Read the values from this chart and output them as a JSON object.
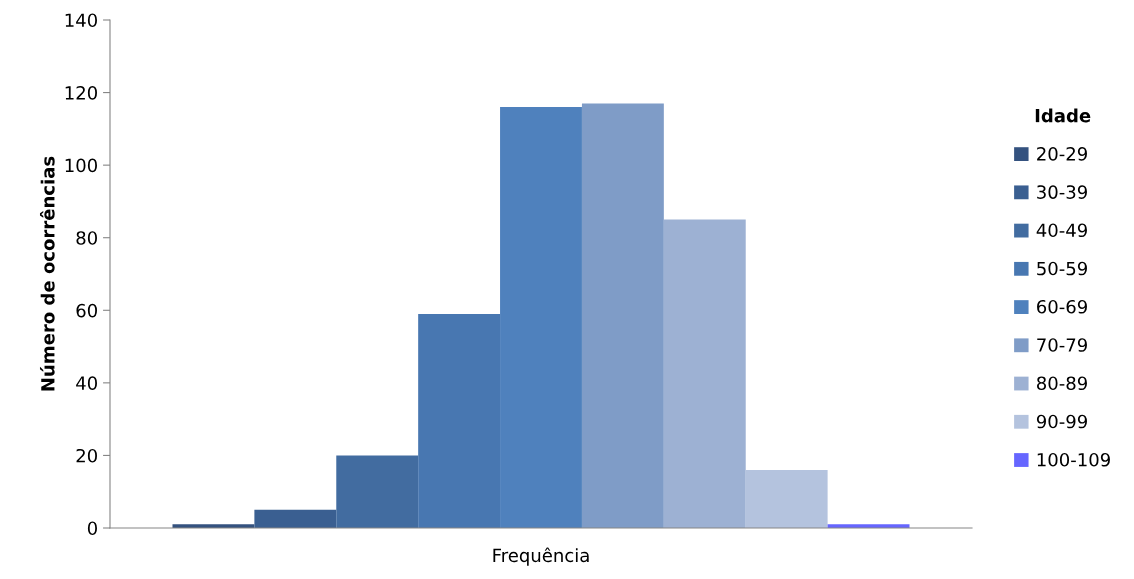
{
  "chart_data": {
    "type": "bar",
    "ylabel": "Número de ocorrências",
    "legend_title": "Idade",
    "categories": [
      "Frequência"
    ],
    "series": [
      {
        "name": "20-29",
        "color": "#34527f",
        "values": [
          1
        ]
      },
      {
        "name": "30-39",
        "color": "#3a5f91",
        "values": [
          5
        ]
      },
      {
        "name": "40-49",
        "color": "#426ca0",
        "values": [
          20
        ]
      },
      {
        "name": "50-59",
        "color": "#4877b1",
        "values": [
          59
        ]
      },
      {
        "name": "60-69",
        "color": "#4f81bd",
        "values": [
          116
        ]
      },
      {
        "name": "70-79",
        "color": "#7f9cc7",
        "values": [
          117
        ]
      },
      {
        "name": "80-89",
        "color": "#9db1d3",
        "values": [
          85
        ]
      },
      {
        "name": "90-99",
        "color": "#b4c3de",
        "values": [
          16
        ]
      },
      {
        "name": "100-109",
        "color": "#6666ff",
        "values": [
          1
        ]
      }
    ],
    "ylim": [
      0,
      140
    ],
    "yticks": [
      0,
      20,
      40,
      60,
      80,
      100,
      120,
      140
    ],
    "grid": false,
    "legend": "right"
  }
}
